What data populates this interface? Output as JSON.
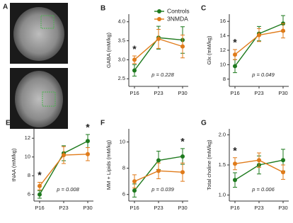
{
  "image_panel": {
    "label": "A"
  },
  "chart_data": [
    {
      "type": "line",
      "panel_label": "B",
      "y_label": "GABA (mM/kg)",
      "categories": [
        "P16",
        "P23",
        "P30"
      ],
      "series": [
        {
          "name": "Controls",
          "color": "#1e7a1e",
          "values": [
            2.72,
            3.58,
            3.52
          ],
          "errors": [
            0.15,
            0.3,
            0.35
          ]
        },
        {
          "name": "3NMDA",
          "color": "#e07b1a",
          "values": [
            3.0,
            3.55,
            3.35
          ],
          "errors": [
            0.1,
            0.25,
            0.3
          ]
        }
      ],
      "ylim": [
        2.3,
        4.2
      ],
      "yticks": [
        {
          "value": 2.5,
          "label": "2.5"
        },
        {
          "value": 3,
          "label": "3.0"
        },
        {
          "value": 3.5,
          "label": "3.5"
        },
        {
          "value": 4,
          "label": "4.0"
        }
      ],
      "annotation": "p = 0.228",
      "significance": [
        "*",
        null,
        null
      ],
      "legend": true
    },
    {
      "type": "line",
      "panel_label": "C",
      "y_label": "Glx (mM/kg)",
      "categories": [
        "P16",
        "P23",
        "P30"
      ],
      "series": [
        {
          "color": "#1e7a1e",
          "values": [
            9.8,
            14.3,
            15.7
          ],
          "errors": [
            0.9,
            1.0,
            1.1
          ]
        },
        {
          "color": "#e07b1a",
          "values": [
            11.4,
            14.1,
            14.7
          ],
          "errors": [
            0.7,
            0.9,
            1.0
          ]
        }
      ],
      "ylim": [
        7,
        17
      ],
      "yticks": [
        8,
        10,
        12,
        14,
        16
      ],
      "annotation": "p = 0.049",
      "significance": [
        "*",
        null,
        null
      ]
    },
    {
      "type": "line",
      "panel_label": "E",
      "y_label": "tNAA (mM/kg)",
      "categories": [
        "P16",
        "P23",
        "P30"
      ],
      "series": [
        {
          "color": "#1e7a1e",
          "values": [
            6.0,
            10.4,
            11.7
          ],
          "errors": [
            0.4,
            0.8,
            0.7
          ]
        },
        {
          "color": "#e07b1a",
          "values": [
            6.9,
            10.2,
            10.3
          ],
          "errors": [
            0.4,
            0.9,
            0.7
          ]
        }
      ],
      "ylim": [
        5.3,
        13
      ],
      "yticks": [
        6,
        8,
        10,
        12
      ],
      "annotation": "p = 0.008",
      "significance": [
        "*",
        null,
        "*"
      ]
    },
    {
      "type": "line",
      "panel_label": "F",
      "y_label": "MM + Lipids (mM/kg)",
      "categories": [
        "P16",
        "P23",
        "P30"
      ],
      "series": [
        {
          "color": "#1e7a1e",
          "values": [
            6.3,
            8.6,
            8.9
          ],
          "errors": [
            0.5,
            0.7,
            0.6
          ]
        },
        {
          "color": "#e07b1a",
          "values": [
            7.0,
            7.8,
            7.7
          ],
          "errors": [
            0.5,
            0.6,
            0.7
          ]
        }
      ],
      "ylim": [
        5.5,
        11
      ],
      "yticks": [
        6,
        8,
        10
      ],
      "annotation": "p = 0.039",
      "significance": [
        null,
        null,
        "*"
      ]
    },
    {
      "type": "line",
      "panel_label": "G",
      "y_label": "Total choline (mM/kg)",
      "categories": [
        "P16",
        "P23",
        "P30"
      ],
      "series": [
        {
          "color": "#1e7a1e",
          "values": [
            1.25,
            1.5,
            1.58
          ],
          "errors": [
            0.12,
            0.15,
            0.18
          ]
        },
        {
          "color": "#e07b1a",
          "values": [
            1.52,
            1.58,
            1.38
          ],
          "errors": [
            0.1,
            0.12,
            0.12
          ]
        }
      ],
      "ylim": [
        0.9,
        2.1
      ],
      "yticks": [
        {
          "value": 1,
          "label": "1.0"
        },
        {
          "value": 1.5,
          "label": "1.5"
        },
        {
          "value": 2,
          "label": "2.0"
        }
      ],
      "annotation": "p = 0.006",
      "significance": [
        "*",
        null,
        null
      ]
    }
  ]
}
